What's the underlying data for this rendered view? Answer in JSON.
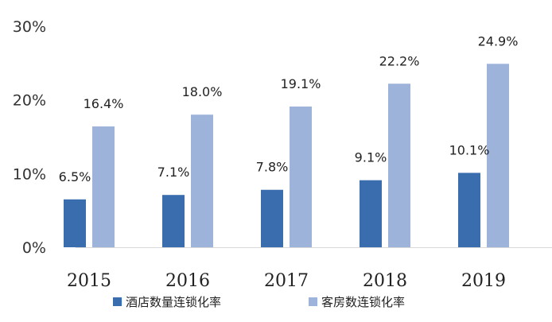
{
  "chart_data": {
    "type": "bar",
    "categories": [
      "2015",
      "2016",
      "2017",
      "2018",
      "2019"
    ],
    "series": [
      {
        "name": "酒店数量连锁化率",
        "values": [
          6.5,
          7.1,
          7.8,
          9.1,
          10.1
        ],
        "labels": [
          "6.5%",
          "7.1%",
          "7.8%",
          "9.1%",
          "10.1%"
        ],
        "color": "#3A6DAE"
      },
      {
        "name": "客房数连锁化率",
        "values": [
          16.4,
          18.0,
          19.1,
          22.2,
          24.9
        ],
        "labels": [
          "16.4%",
          "18.0%",
          "19.1%",
          "22.2%",
          "24.9%"
        ],
        "color": "#9DB3DA"
      }
    ],
    "y_ticks": [
      "0%",
      "10%",
      "20%",
      "30%"
    ],
    "ylim": [
      0,
      30
    ],
    "grid": false,
    "legend_position": "bottom"
  }
}
